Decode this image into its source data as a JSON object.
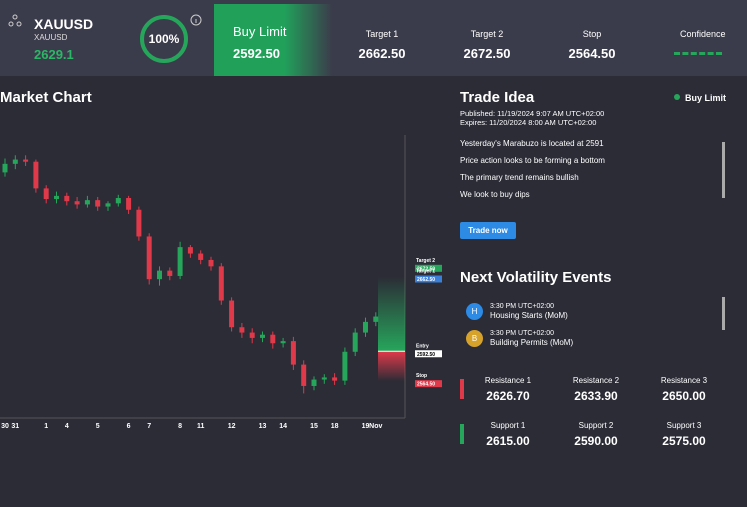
{
  "header": {
    "symbol": "XAUUSD",
    "subtitle": "XAUUSD",
    "price": "2629.1",
    "score": "100%",
    "order_type": "Buy Limit",
    "order_price": "2592.50",
    "stats": [
      {
        "label": "Target 1",
        "value": "2662.50"
      },
      {
        "label": "Target 2",
        "value": "2672.50"
      },
      {
        "label": "Stop",
        "value": "2564.50"
      }
    ],
    "confidence": "Confidence"
  },
  "chart_data": {
    "type": "candlestick",
    "title": "Market Chart",
    "categories": [
      "30",
      "31",
      null,
      null,
      "1",
      null,
      "4",
      null,
      null,
      "5",
      null,
      null,
      "6",
      null,
      "7",
      null,
      null,
      "8",
      null,
      "11",
      null,
      null,
      "12",
      null,
      null,
      "13",
      null,
      "14",
      null,
      null,
      "15",
      null,
      "18",
      null,
      null,
      "19",
      "Nov"
    ],
    "open": [
      2760,
      2768,
      2772,
      2770,
      2745,
      2735,
      2738,
      2733,
      2730,
      2734,
      2728,
      2731,
      2736,
      2725,
      2700,
      2660,
      2668,
      2663,
      2690,
      2684,
      2678,
      2672,
      2640,
      2615,
      2610,
      2605,
      2608,
      2600,
      2602,
      2580,
      2560,
      2566,
      2568,
      2565,
      2592,
      2610,
      2620
    ],
    "high": [
      2773,
      2776,
      2776,
      2772,
      2748,
      2742,
      2741,
      2737,
      2738,
      2737,
      2733,
      2739,
      2738,
      2728,
      2703,
      2672,
      2671,
      2695,
      2692,
      2687,
      2681,
      2675,
      2643,
      2619,
      2614,
      2611,
      2611,
      2605,
      2606,
      2584,
      2569,
      2571,
      2572,
      2596,
      2614,
      2624,
      2629
    ],
    "low": [
      2756,
      2763,
      2766,
      2741,
      2731,
      2731,
      2729,
      2726,
      2727,
      2724,
      2724,
      2728,
      2721,
      2696,
      2655,
      2654,
      2659,
      2660,
      2680,
      2674,
      2668,
      2636,
      2611,
      2605,
      2600,
      2601,
      2595,
      2596,
      2575,
      2553,
      2556,
      2562,
      2561,
      2561,
      2588,
      2606,
      2616
    ],
    "close": [
      2768,
      2772,
      2770,
      2745,
      2735,
      2738,
      2733,
      2730,
      2734,
      2728,
      2731,
      2736,
      2725,
      2700,
      2660,
      2668,
      2663,
      2690,
      2684,
      2678,
      2672,
      2640,
      2615,
      2610,
      2605,
      2608,
      2600,
      2602,
      2580,
      2560,
      2566,
      2568,
      2565,
      2592,
      2610,
      2620,
      2625
    ],
    "up_color": "#26a65b",
    "down_color": "#e0394a",
    "ylim": [
      2530,
      2795
    ],
    "levels": [
      {
        "name": "Target 2",
        "value": 2672.5,
        "label": "2672.50",
        "color": "#26a65b"
      },
      {
        "name": "Target 1",
        "value": 2662.5,
        "label": "2662.50",
        "color": "#3b7fd9"
      },
      {
        "name": "Entry",
        "value": 2592.5,
        "label": "2592.50",
        "color": "#ffffff"
      },
      {
        "name": "Stop",
        "value": 2564.5,
        "label": "2564.50",
        "color": "#e0394a"
      }
    ]
  },
  "trade_idea": {
    "title": "Trade Idea",
    "status": "Buy Limit",
    "published": "Published: 11/19/2024 9:07 AM UTC+02:00",
    "expires": "Expires: 11/20/2024 8:00 AM UTC+02:00",
    "lines": [
      "Yesterday's Marabuzo is located at 2591",
      "Price action looks to be forming a bottom",
      "The primary trend remains bullish",
      "We look to buy dips"
    ],
    "button": "Trade now"
  },
  "events": {
    "title": "Next Volatility Events",
    "items": [
      {
        "icon": "H",
        "time": "3:30 PM UTC+02:00",
        "name": "Housing Starts (MoM)"
      },
      {
        "icon": "B",
        "time": "3:30 PM UTC+02:00",
        "name": "Building Permits (MoM)"
      }
    ]
  },
  "levels": {
    "resistance": [
      {
        "label": "Resistance 1",
        "value": "2626.70"
      },
      {
        "label": "Resistance 2",
        "value": "2633.90"
      },
      {
        "label": "Resistance 3",
        "value": "2650.00"
      }
    ],
    "support": [
      {
        "label": "Support 1",
        "value": "2615.00"
      },
      {
        "label": "Support 2",
        "value": "2590.00"
      },
      {
        "label": "Support 3",
        "value": "2575.00"
      }
    ]
  }
}
